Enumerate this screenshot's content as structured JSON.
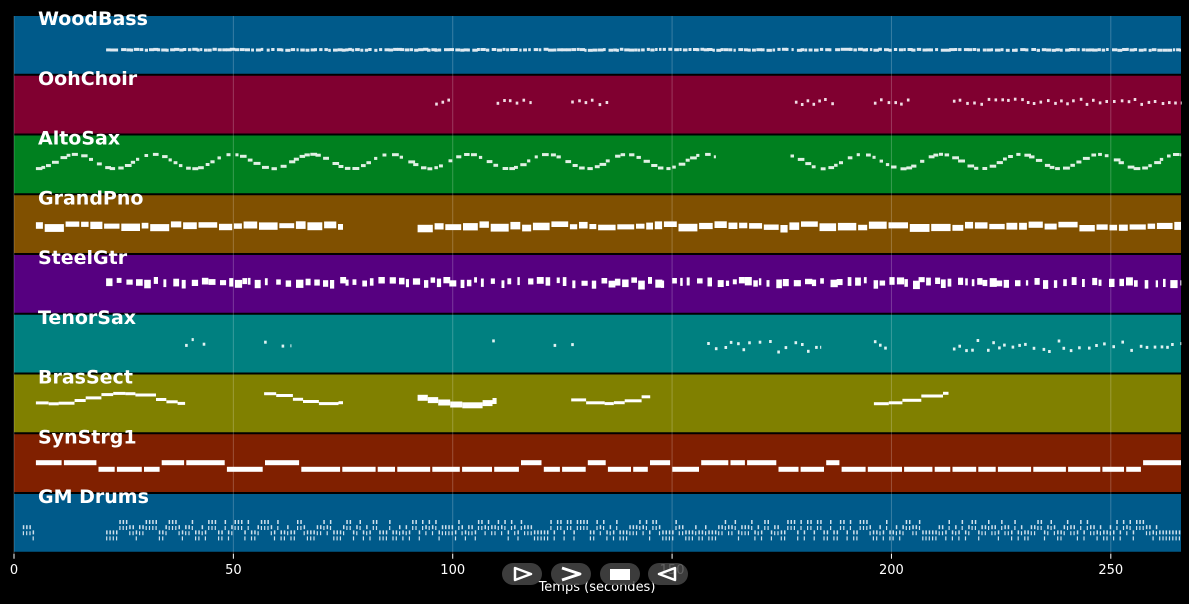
{
  "chart_data": {
    "type": "piano-roll",
    "title": "",
    "xlabel": "Temps (secondes)",
    "ylabel": "",
    "xlim": [
      0,
      266
    ],
    "x_ticks": [
      0,
      50,
      100,
      150,
      200,
      250
    ],
    "grid": true,
    "tracks": [
      {
        "name": "WoodBass",
        "color": "#005a8a",
        "style": "dense-small",
        "segments": [
          [
            21,
            266
          ]
        ],
        "note_band": [
          0.55,
          0.62
        ]
      },
      {
        "name": "OohChoir",
        "color": "#800030",
        "style": "sparse-clusters",
        "segments": [
          [
            96,
            100
          ],
          [
            110,
            118
          ],
          [
            127,
            136
          ],
          [
            178,
            187
          ],
          [
            196,
            205
          ],
          [
            214,
            266
          ]
        ],
        "note_band": [
          0.38,
          0.48
        ]
      },
      {
        "name": "AltoSax",
        "color": "#00801f",
        "style": "melody",
        "segments": [
          [
            5,
            160
          ],
          [
            177,
            266
          ]
        ],
        "note_band": [
          0.3,
          0.55
        ]
      },
      {
        "name": "GrandPno",
        "color": "#805000",
        "style": "thick-chords",
        "segments": [
          [
            5,
            75
          ],
          [
            92,
            266
          ]
        ],
        "note_band": [
          0.45,
          0.62
        ]
      },
      {
        "name": "SteelGtr",
        "color": "#560080",
        "style": "strum",
        "segments": [
          [
            21,
            266
          ]
        ],
        "note_band": [
          0.38,
          0.55
        ]
      },
      {
        "name": "TenorSax",
        "color": "#008080",
        "style": "sparse-melody",
        "segments": [
          [
            39,
            41
          ],
          [
            43,
            45
          ],
          [
            57,
            58
          ],
          [
            61,
            63
          ],
          [
            109,
            110
          ],
          [
            123,
            124
          ],
          [
            127,
            128
          ],
          [
            158,
            184
          ],
          [
            196,
            200
          ],
          [
            214,
            266
          ]
        ],
        "note_band": [
          0.4,
          0.62
        ]
      },
      {
        "name": "BrasSect",
        "color": "#808000",
        "style": "long-lines",
        "segments": [
          [
            5,
            39
          ],
          [
            57,
            75
          ],
          [
            92,
            110
          ],
          [
            127,
            145
          ],
          [
            196,
            213
          ]
        ],
        "note_band": [
          0.3,
          0.55
        ]
      },
      {
        "name": "SynStrg1",
        "color": "#802000",
        "style": "sustained-pads",
        "segments": [
          [
            5,
            266
          ]
        ],
        "note_band": [
          0.45,
          0.65
        ]
      },
      {
        "name": "GM Drums",
        "color": "#005a8a",
        "style": "drums",
        "segments": [
          [
            2,
            5
          ],
          [
            21,
            266
          ]
        ],
        "note_band": [
          0.45,
          0.7
        ]
      }
    ]
  },
  "controls": {
    "play_icon": "play-outline-icon",
    "forward_icon": "fast-forward-icon",
    "stop_icon": "stop-icon",
    "rewind_icon": "rewind-icon"
  }
}
